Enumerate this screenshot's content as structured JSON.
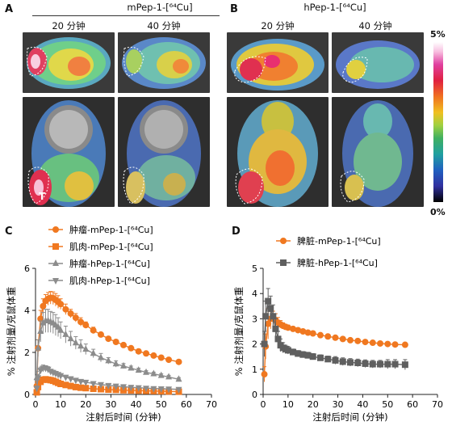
{
  "panels": {
    "A": {
      "letter": "A",
      "title": "mPep-1-[⁶⁴Cu]",
      "times": [
        "20 分钟",
        "40 分钟"
      ],
      "tumor_label": "T"
    },
    "B": {
      "letter": "B",
      "title": "hPep-1-[⁶⁴Cu]",
      "times": [
        "20 分钟",
        "40 分钟"
      ]
    },
    "colorbar": {
      "max": "5%",
      "min": "0%"
    },
    "C": {
      "letter": "C"
    },
    "D": {
      "letter": "D"
    }
  },
  "chart_data": [
    {
      "type": "line",
      "panel": "C",
      "xlabel": "注射后时间 (分钟)",
      "ylabel": "% 注射剂量/克鼠体重",
      "xlim": [
        0,
        70
      ],
      "ylim": [
        0,
        6
      ],
      "xticks": [
        0,
        10,
        20,
        30,
        40,
        50,
        60,
        70
      ],
      "yticks": [
        0,
        2,
        4,
        6
      ],
      "legend_position": "top-left",
      "series": [
        {
          "name": "肿瘤-mPep-1-[⁶⁴Cu]",
          "color": "#f07820",
          "marker": "circle",
          "x": [
            0.5,
            1,
            2,
            3,
            4,
            5,
            6,
            7,
            8,
            9,
            10,
            12,
            14,
            16,
            18,
            20,
            23,
            26,
            29,
            32,
            35,
            38,
            41,
            44,
            47,
            50,
            53,
            57
          ],
          "y": [
            0.4,
            2.2,
            3.6,
            4.2,
            4.45,
            4.55,
            4.6,
            4.58,
            4.5,
            4.4,
            4.3,
            4.05,
            3.85,
            3.65,
            3.45,
            3.3,
            3.05,
            2.85,
            2.65,
            2.5,
            2.35,
            2.2,
            2.05,
            1.95,
            1.85,
            1.75,
            1.65,
            1.55
          ],
          "err": [
            0.2,
            0.4,
            0.4,
            0.35,
            0.3,
            0.3,
            0.3,
            0.3,
            0.3,
            0.3,
            0.25,
            0.25,
            0.2,
            0.2,
            0.2,
            0.15,
            0.15,
            0.1,
            0.1,
            0.1,
            0.1,
            0.1,
            0.1,
            0.08,
            0.08,
            0.08,
            0.08,
            0.08
          ]
        },
        {
          "name": "肌肉-mPep-1-[⁶⁴Cu]",
          "color": "#f07820",
          "marker": "square",
          "x": [
            0.5,
            1,
            2,
            3,
            4,
            5,
            6,
            7,
            8,
            9,
            10,
            12,
            14,
            16,
            18,
            20,
            23,
            26,
            29,
            32,
            35,
            38,
            41,
            44,
            47,
            50,
            53,
            57
          ],
          "y": [
            0.1,
            0.35,
            0.6,
            0.7,
            0.72,
            0.7,
            0.68,
            0.65,
            0.6,
            0.55,
            0.5,
            0.45,
            0.4,
            0.35,
            0.32,
            0.3,
            0.27,
            0.25,
            0.23,
            0.22,
            0.2,
            0.19,
            0.18,
            0.17,
            0.16,
            0.15,
            0.14,
            0.13
          ],
          "err": [
            0.05,
            0.1,
            0.12,
            0.1,
            0.1,
            0.1,
            0.08,
            0.08,
            0.08,
            0.06,
            0.06,
            0.05,
            0.05,
            0.04,
            0.04,
            0.04,
            0.03,
            0.03,
            0.03,
            0.03,
            0.03,
            0.03,
            0.03,
            0.03,
            0.03,
            0.03,
            0.03,
            0.03
          ]
        },
        {
          "name": "肿瘤-hPep-1-[⁶⁴Cu]",
          "color": "#8c8c8c",
          "marker": "triangle-up",
          "x": [
            0.5,
            1,
            2,
            3,
            4,
            5,
            6,
            7,
            8,
            9,
            10,
            12,
            14,
            16,
            18,
            20,
            23,
            26,
            29,
            32,
            35,
            38,
            41,
            44,
            47,
            50,
            53,
            57
          ],
          "y": [
            0.8,
            2.2,
            3.0,
            3.4,
            3.5,
            3.5,
            3.45,
            3.4,
            3.3,
            3.2,
            3.05,
            2.85,
            2.65,
            2.45,
            2.3,
            2.15,
            1.95,
            1.75,
            1.6,
            1.45,
            1.35,
            1.25,
            1.15,
            1.05,
            0.98,
            0.9,
            0.83,
            0.72
          ],
          "err": [
            0.3,
            0.4,
            0.5,
            0.5,
            0.55,
            0.55,
            0.5,
            0.5,
            0.5,
            0.45,
            0.4,
            0.4,
            0.35,
            0.3,
            0.3,
            0.25,
            0.2,
            0.2,
            0.15,
            0.15,
            0.12,
            0.1,
            0.1,
            0.08,
            0.08,
            0.08,
            0.08,
            0.08
          ]
        },
        {
          "name": "肌肉-hPep-1-[⁶⁴Cu]",
          "color": "#8c8c8c",
          "marker": "triangle-down",
          "x": [
            0.5,
            1,
            2,
            3,
            4,
            5,
            6,
            7,
            8,
            9,
            10,
            12,
            14,
            16,
            18,
            20,
            23,
            26,
            29,
            32,
            35,
            38,
            41,
            44,
            47,
            50,
            53,
            57
          ],
          "y": [
            0.3,
            0.8,
            1.15,
            1.25,
            1.25,
            1.2,
            1.1,
            1.05,
            1.0,
            0.95,
            0.9,
            0.82,
            0.75,
            0.68,
            0.62,
            0.58,
            0.52,
            0.47,
            0.43,
            0.4,
            0.37,
            0.34,
            0.32,
            0.3,
            0.28,
            0.27,
            0.26,
            0.24
          ],
          "err": [
            0.1,
            0.15,
            0.15,
            0.15,
            0.12,
            0.12,
            0.1,
            0.1,
            0.1,
            0.08,
            0.08,
            0.06,
            0.06,
            0.05,
            0.05,
            0.05,
            0.04,
            0.04,
            0.04,
            0.04,
            0.03,
            0.03,
            0.03,
            0.03,
            0.03,
            0.03,
            0.03,
            0.03
          ]
        }
      ]
    },
    {
      "type": "line",
      "panel": "D",
      "xlabel": "注射后时间 (分钟)",
      "ylabel": "% 注射剂量/克鼠体重",
      "xlim": [
        0,
        70
      ],
      "ylim": [
        0,
        5
      ],
      "xticks": [
        0,
        10,
        20,
        30,
        40,
        50,
        60,
        70
      ],
      "yticks": [
        0,
        1,
        2,
        3,
        4,
        5
      ],
      "legend_position": "top-right",
      "series": [
        {
          "name": "脾脏-mPep-1-[⁶⁴Cu]",
          "color": "#f07820",
          "marker": "circle",
          "x": [
            0.5,
            1,
            2,
            3,
            4,
            5,
            6,
            7,
            8,
            9,
            10,
            12,
            14,
            16,
            18,
            20,
            23,
            26,
            29,
            32,
            35,
            38,
            41,
            44,
            47,
            50,
            53,
            57
          ],
          "y": [
            0.8,
            1.9,
            2.8,
            3.0,
            3.0,
            2.95,
            2.85,
            2.78,
            2.72,
            2.68,
            2.65,
            2.6,
            2.55,
            2.5,
            2.45,
            2.42,
            2.35,
            2.3,
            2.25,
            2.2,
            2.15,
            2.12,
            2.08,
            2.05,
            2.02,
            2.0,
            1.98,
            1.97
          ],
          "err": [
            0.3,
            0.5,
            0.6,
            0.4,
            0.3,
            0.25,
            0.2,
            0.15,
            0.12,
            0.1,
            0.1,
            0.08,
            0.08,
            0.07,
            0.07,
            0.06,
            0.06,
            0.05,
            0.05,
            0.05,
            0.05,
            0.05,
            0.05,
            0.05,
            0.05,
            0.05,
            0.05,
            0.05
          ]
        },
        {
          "name": "脾脏-hPep-1-[⁶⁴Cu]",
          "color": "#5f5f5f",
          "marker": "square",
          "x": [
            0.5,
            1,
            2,
            3,
            4,
            5,
            6,
            7,
            8,
            9,
            10,
            12,
            14,
            16,
            18,
            20,
            23,
            26,
            29,
            32,
            35,
            38,
            41,
            44,
            47,
            50,
            53,
            57
          ],
          "y": [
            2.0,
            3.1,
            3.7,
            3.4,
            3.1,
            2.6,
            2.2,
            1.95,
            1.85,
            1.8,
            1.75,
            1.68,
            1.62,
            1.58,
            1.55,
            1.5,
            1.45,
            1.4,
            1.35,
            1.3,
            1.27,
            1.25,
            1.22,
            1.2,
            1.2,
            1.2,
            1.2,
            1.18
          ],
          "err": [
            0.5,
            0.6,
            0.5,
            0.5,
            0.45,
            0.4,
            0.3,
            0.25,
            0.2,
            0.15,
            0.15,
            0.12,
            0.12,
            0.12,
            0.12,
            0.12,
            0.12,
            0.12,
            0.15,
            0.15,
            0.15,
            0.15,
            0.15,
            0.15,
            0.15,
            0.18,
            0.18,
            0.2
          ]
        }
      ]
    }
  ]
}
